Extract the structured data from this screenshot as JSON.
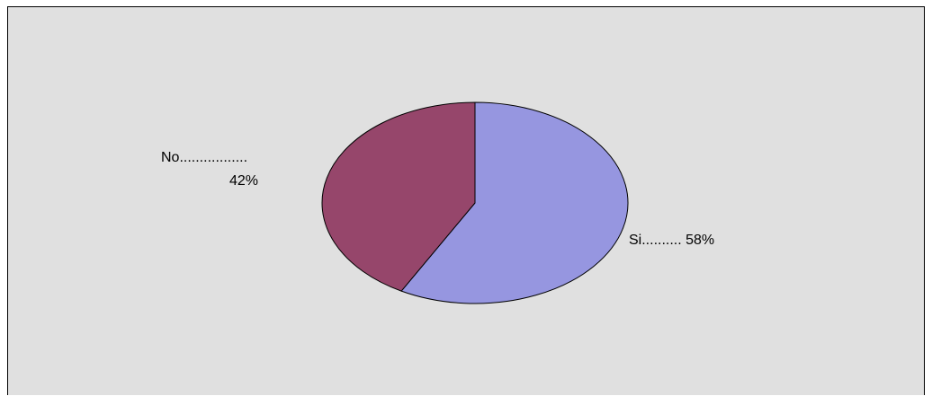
{
  "chart_data": {
    "type": "pie",
    "slices": [
      {
        "name": "Si",
        "value": 58,
        "label_line1": "Si.......... 58%",
        "label_line2": "",
        "color": "#9696e0"
      },
      {
        "name": "No",
        "value": 42,
        "label_line1": "No.................",
        "label_line2": "42%",
        "color": "#96466b"
      }
    ],
    "start_angle_deg": 0,
    "direction": "clockwise",
    "background_color": "#e0e0e0",
    "legend": "none"
  }
}
